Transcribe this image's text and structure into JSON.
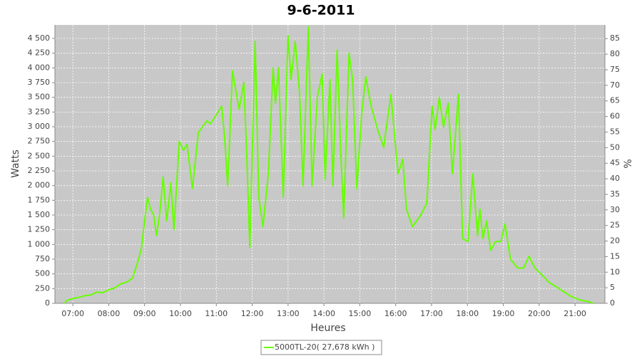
{
  "chart_data": {
    "type": "line",
    "title": "9-6-2011",
    "x_label": "Heures",
    "y_label": "Watts",
    "y2_label": "%",
    "x": [
      "06:46",
      "06:50",
      "07:00",
      "07:10",
      "07:20",
      "07:30",
      "07:40",
      "07:50",
      "08:00",
      "08:10",
      "08:20",
      "08:30",
      "08:40",
      "08:50",
      "08:55",
      "09:00",
      "09:05",
      "09:10",
      "09:15",
      "09:20",
      "09:25",
      "09:31",
      "09:37",
      "09:44",
      "09:49",
      "09:58",
      "10:05",
      "10:11",
      "10:20",
      "10:30",
      "10:44",
      "10:50",
      "11:00",
      "11:09",
      "11:14",
      "11:19",
      "11:27",
      "11:38",
      "11:46",
      "11:51",
      "11:56",
      "12:05",
      "12:11",
      "12:18",
      "12:27",
      "12:35",
      "12:39",
      "12:44",
      "12:52",
      "13:00",
      "13:05",
      "13:12",
      "13:19",
      "13:25",
      "13:34",
      "13:40",
      "13:49",
      "13:57",
      "14:02",
      "14:10",
      "14:15",
      "14:22",
      "14:28",
      "14:33",
      "14:42",
      "14:48",
      "14:55",
      "15:03",
      "15:10",
      "15:19",
      "15:30",
      "15:40",
      "15:52",
      "16:04",
      "16:12",
      "16:18",
      "16:28",
      "16:42",
      "16:52",
      "17:01",
      "17:06",
      "17:13",
      "17:20",
      "17:28",
      "17:35",
      "17:45",
      "17:52",
      "18:01",
      "18:09",
      "18:17",
      "18:21",
      "18:26",
      "18:32",
      "18:39",
      "18:47",
      "18:56",
      "19:03",
      "19:12",
      "19:24",
      "19:34",
      "19:43",
      "19:53",
      "20:05",
      "20:17",
      "20:29",
      "20:41",
      "20:53",
      "21:07",
      "21:22",
      "21:31"
    ],
    "series": [
      {
        "name": "5000TL-20( 27,678 kWh )",
        "color": "#66ff00",
        "values": [
          0,
          50,
          80,
          100,
          130,
          140,
          190,
          180,
          230,
          260,
          330,
          360,
          430,
          750,
          950,
          1400,
          1800,
          1600,
          1500,
          1150,
          1500,
          2150,
          1400,
          2050,
          1250,
          2750,
          2600,
          2700,
          1950,
          2900,
          3100,
          3050,
          3200,
          3350,
          2800,
          2000,
          3950,
          3300,
          3750,
          2500,
          950,
          4450,
          1800,
          1300,
          2200,
          4000,
          3400,
          4000,
          1800,
          4550,
          3800,
          4450,
          3600,
          2000,
          4700,
          2000,
          3500,
          3900,
          2100,
          3800,
          2000,
          4300,
          2600,
          1450,
          4250,
          3800,
          1950,
          3200,
          3850,
          3350,
          2950,
          2650,
          3550,
          2200,
          2450,
          1600,
          1300,
          1500,
          1700,
          3350,
          2950,
          3500,
          3000,
          3400,
          2200,
          3550,
          1100,
          1050,
          2200,
          1150,
          1600,
          1100,
          1400,
          900,
          1050,
          1050,
          1350,
          750,
          600,
          600,
          800,
          600,
          480,
          350,
          280,
          200,
          120,
          60,
          30,
          0
        ]
      }
    ],
    "xlim": [
      "06:30",
      "21:50"
    ],
    "xticks": [
      "07:00",
      "08:00",
      "09:00",
      "10:00",
      "11:00",
      "12:00",
      "13:00",
      "14:00",
      "15:00",
      "16:00",
      "17:00",
      "18:00",
      "19:00",
      "20:00",
      "21:00"
    ],
    "ylim": [
      0,
      4730
    ],
    "yticks": [
      0,
      250,
      500,
      750,
      {
        "value": 1000,
        "label": "1 000"
      },
      {
        "value": 1250,
        "label": "1 250"
      },
      {
        "value": 1500,
        "label": "1 500"
      },
      {
        "value": 1750,
        "label": "1 750"
      },
      {
        "value": 2000,
        "label": "2 000"
      },
      {
        "value": 2250,
        "label": "2 250"
      },
      {
        "value": 2500,
        "label": "2 500"
      },
      {
        "value": 2750,
        "label": "2 750"
      },
      {
        "value": 3000,
        "label": "3 000"
      },
      {
        "value": 3250,
        "label": "3 250"
      },
      {
        "value": 3500,
        "label": "3 500"
      },
      {
        "value": 3750,
        "label": "3 750"
      },
      {
        "value": 4000,
        "label": "4 000"
      },
      {
        "value": 4250,
        "label": "4 250"
      },
      {
        "value": 4500,
        "label": "4 500"
      }
    ],
    "y2lim": [
      0,
      89.4
    ],
    "y2ticks": [
      0,
      5,
      10,
      15,
      20,
      25,
      30,
      35,
      40,
      45,
      50,
      55,
      60,
      65,
      70,
      75,
      80,
      85
    ],
    "grid": true,
    "plot_background": "#c8c8c8",
    "legend": "bottom"
  }
}
